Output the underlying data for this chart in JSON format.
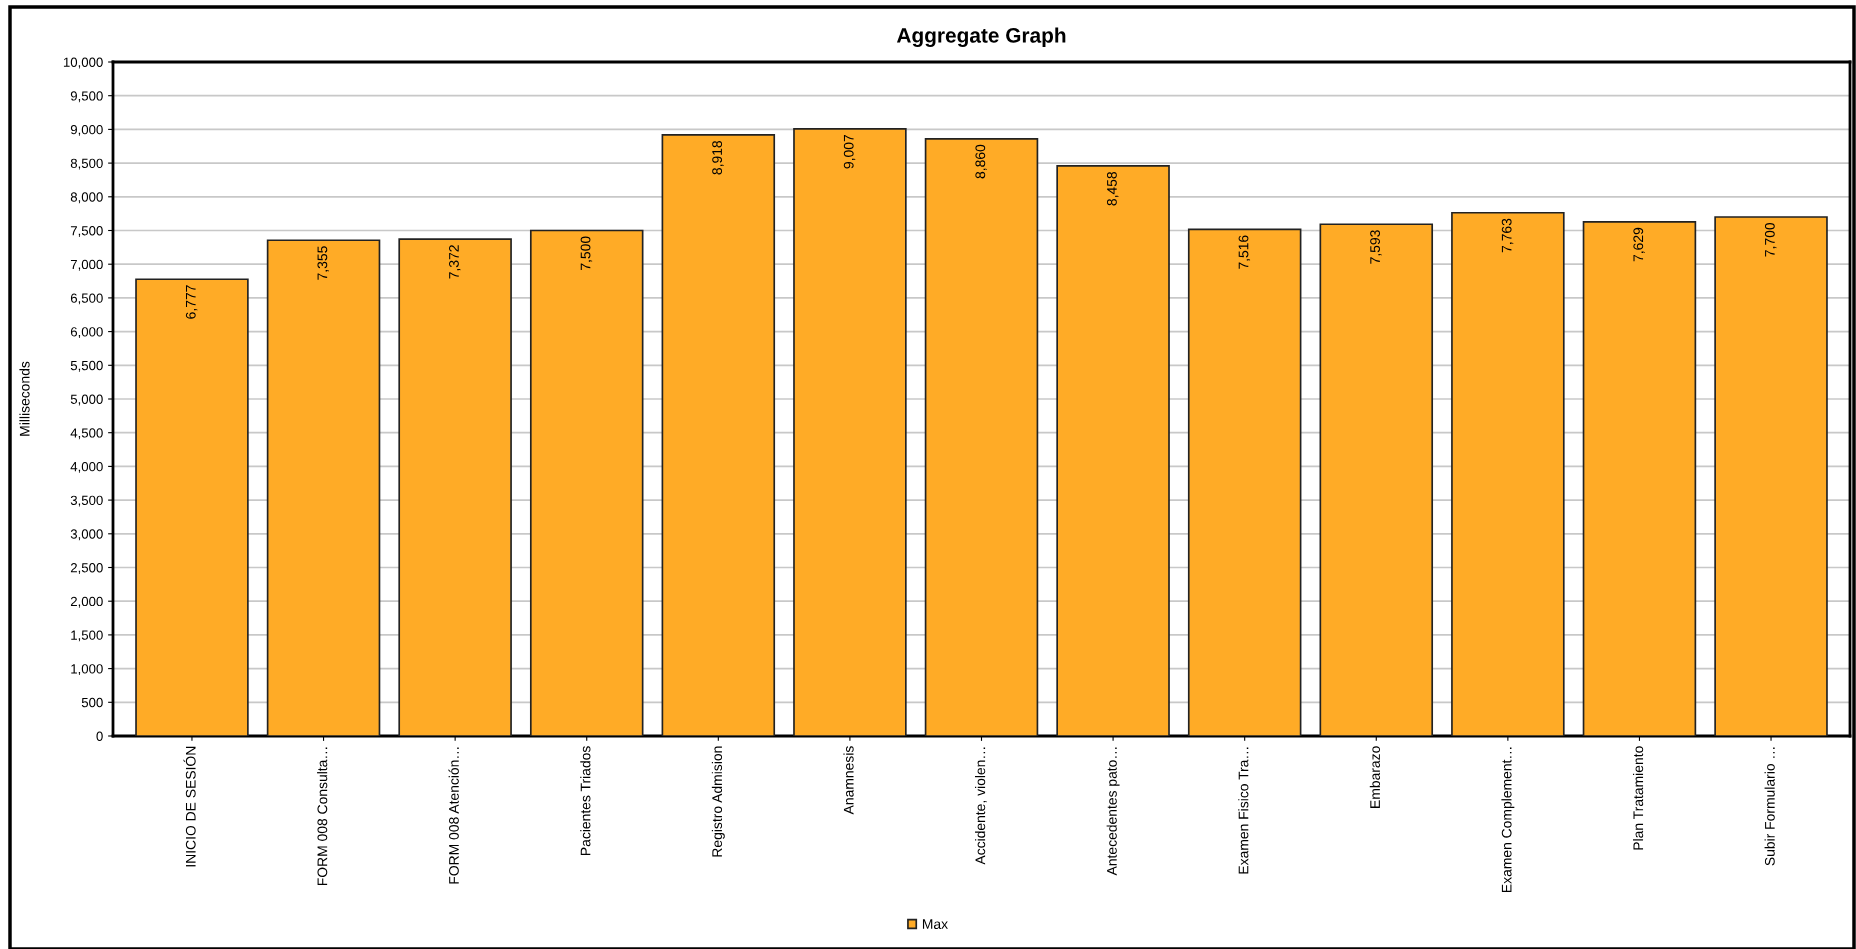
{
  "chart_data": {
    "type": "bar",
    "title": "Aggregate Graph",
    "ylabel": "Milliseconds",
    "categories": [
      "INICIO DE SESIÓN",
      "FORM 008 Consulta…",
      "FORM 008 Atención…",
      "Pacientes Triados",
      "Registro Admision",
      "Anamnesis",
      "Accidente, violen…",
      "Antecedentes pato…",
      "Examen Fisico Tra…",
      "Embarazo",
      "Examen Complement…",
      "Plan Tratamiento",
      "Subir Formulario …"
    ],
    "series": [
      {
        "name": "Max",
        "color": "#ffab26",
        "values": [
          6777,
          7355,
          7372,
          7500,
          8918,
          9007,
          8860,
          8458,
          7516,
          7593,
          7763,
          7629,
          7700
        ],
        "value_labels": [
          "6,777",
          "7,355",
          "7,372",
          "7,500",
          "8,918",
          "9,007",
          "8,860",
          "8,458",
          "7,516",
          "7,593",
          "7,763",
          "7,629",
          "7,700"
        ]
      }
    ],
    "ylim": [
      0,
      10000
    ],
    "yticks": [
      0,
      {
        "value": 500,
        "label": "500"
      },
      {
        "value": 1000,
        "label": "1,000"
      },
      {
        "value": 1500,
        "label": "1,500"
      },
      {
        "value": 2000,
        "label": "2,000"
      },
      {
        "value": 2500,
        "label": "2,500"
      },
      {
        "value": 3000,
        "label": "3,000"
      },
      {
        "value": 3500,
        "label": "3,500"
      },
      {
        "value": 4000,
        "label": "4,000"
      },
      {
        "value": 4500,
        "label": "4,500"
      },
      {
        "value": 5000,
        "label": "5,000"
      },
      {
        "value": 5500,
        "label": "5,500"
      },
      {
        "value": 6000,
        "label": "6,000"
      },
      {
        "value": 6500,
        "label": "6,500"
      },
      {
        "value": 7000,
        "label": "7,000"
      },
      {
        "value": 7500,
        "label": "7,500"
      },
      {
        "value": 8000,
        "label": "8,000"
      },
      {
        "value": 8500,
        "label": "8,500"
      },
      {
        "value": 9000,
        "label": "9,000"
      },
      {
        "value": 9500,
        "label": "9,500"
      },
      {
        "value": 10000,
        "label": "10,000"
      }
    ],
    "grid": "y",
    "legend": "bottom"
  }
}
